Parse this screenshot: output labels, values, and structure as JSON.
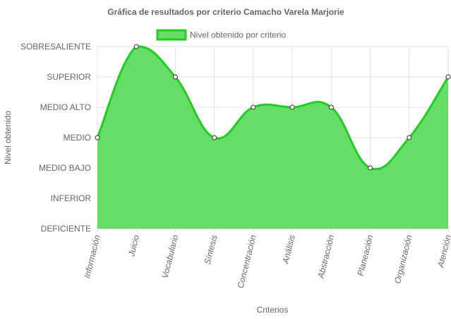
{
  "colors": {
    "fill": "#66dd66",
    "line": "#22cc22",
    "point_fill": "#ffffff",
    "point_stroke": "#333333",
    "text": "#666666",
    "grid": "#e0e0e0"
  },
  "chart_data": {
    "type": "area",
    "title": "Gráfica de resultados por criterio  Camacho Varela Marjorie",
    "xlabel": "Criterios",
    "ylabel": "Nivel obtenido",
    "levels": [
      "DEFICIENTE",
      "INFERIOR",
      "MEDIO BAJO",
      "MEDIO",
      "MEDIO ALTO",
      "SUPERIOR",
      "SOBRESALIENTE"
    ],
    "ylim": [
      0,
      6
    ],
    "grid": true,
    "legend_position": "top",
    "categories": [
      "Información",
      "Juicio",
      "Vocabulario",
      "Síntesis",
      "Concentración",
      "Análisis",
      "Abstracción",
      "Planeación",
      "Organización",
      "Atención"
    ],
    "series": [
      {
        "name": "Nivel obtenido por criterio",
        "values": [
          3,
          6,
          5,
          3,
          4,
          4,
          4,
          2,
          3,
          5
        ]
      }
    ]
  }
}
